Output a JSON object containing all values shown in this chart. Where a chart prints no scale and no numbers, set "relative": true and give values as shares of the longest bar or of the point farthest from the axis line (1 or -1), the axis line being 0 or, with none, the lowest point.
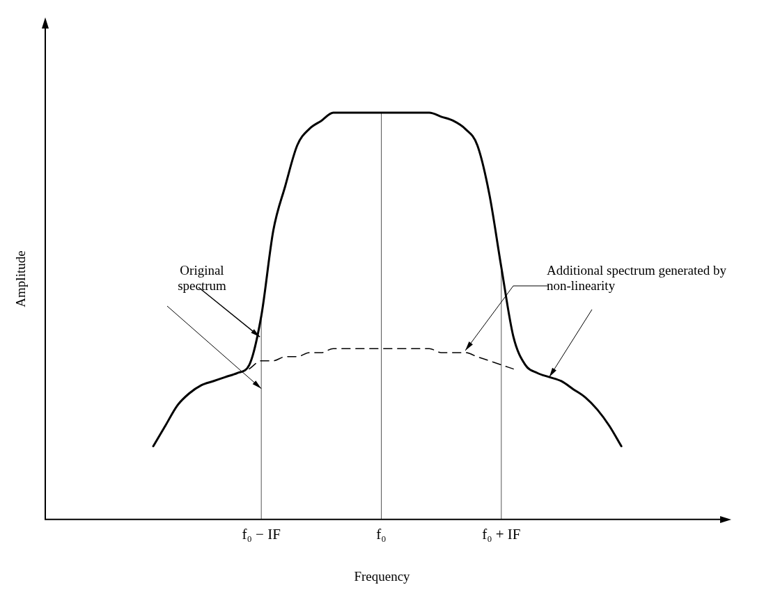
{
  "chart_data": {
    "type": "line",
    "xlabel": "Frequency",
    "ylabel": "Amplitude",
    "relative": true,
    "grid": false,
    "legend": false,
    "marker": "none",
    "tick_labels": "x",
    "categories": [
      null,
      null,
      null,
      null,
      null,
      null,
      null,
      null,
      null,
      null,
      null,
      null,
      null,
      null,
      null,
      null,
      null,
      null,
      "f₀ − IF",
      null,
      null,
      null,
      null,
      null,
      null,
      null,
      null,
      null,
      "f₀",
      null,
      null,
      null,
      null,
      null,
      null,
      null,
      null,
      null,
      "f₀ + IF",
      null,
      null,
      null,
      null,
      null,
      null,
      null,
      null,
      null,
      null,
      null,
      null,
      null,
      null,
      null,
      null,
      null,
      null
    ],
    "series": [
      {
        "color": "#000000",
        "line_style": "solid",
        "values": [
          null,
          null,
          null,
          null,
          null,
          null,
          null,
          null,
          null,
          0.18,
          0.23,
          0.28,
          0.31,
          0.33,
          0.34,
          0.35,
          0.36,
          0.38,
          0.5,
          0.71,
          0.82,
          0.92,
          0.96,
          0.98,
          1,
          1,
          1,
          1,
          1,
          1,
          1,
          1,
          1,
          0.99,
          0.98,
          0.96,
          0.92,
          0.8,
          0.62,
          0.45,
          0.38,
          0.36,
          0.35,
          0.34,
          0.32,
          0.3,
          0.27,
          0.23,
          0.18,
          null,
          null,
          null,
          null,
          null,
          null,
          null,
          null
        ]
      },
      {
        "color": "#000000",
        "line_style": "dashed",
        "values": [
          null,
          null,
          null,
          null,
          null,
          null,
          null,
          null,
          null,
          null,
          null,
          null,
          null,
          null,
          null,
          null,
          null,
          0.37,
          0.39,
          0.39,
          0.4,
          0.4,
          0.41,
          0.41,
          0.42,
          0.42,
          0.42,
          0.42,
          0.42,
          0.42,
          0.42,
          0.42,
          0.42,
          0.41,
          0.41,
          0.41,
          0.4,
          0.39,
          0.38,
          0.37,
          null,
          null,
          null,
          null,
          null,
          null,
          null,
          null,
          null,
          null,
          null,
          null,
          null,
          null,
          null,
          null,
          null
        ]
      }
    ],
    "ref_lines": [
      {
        "axis": "x",
        "value": "f₀ − IF",
        "color": "#555555"
      },
      {
        "axis": "x",
        "value": "f₀",
        "color": "#555555"
      },
      {
        "axis": "x",
        "value": "f₀ + IF",
        "color": "#555555"
      }
    ],
    "annotations": [
      "Original spectrum",
      "Additional spectrum generated by non-linearity"
    ]
  }
}
